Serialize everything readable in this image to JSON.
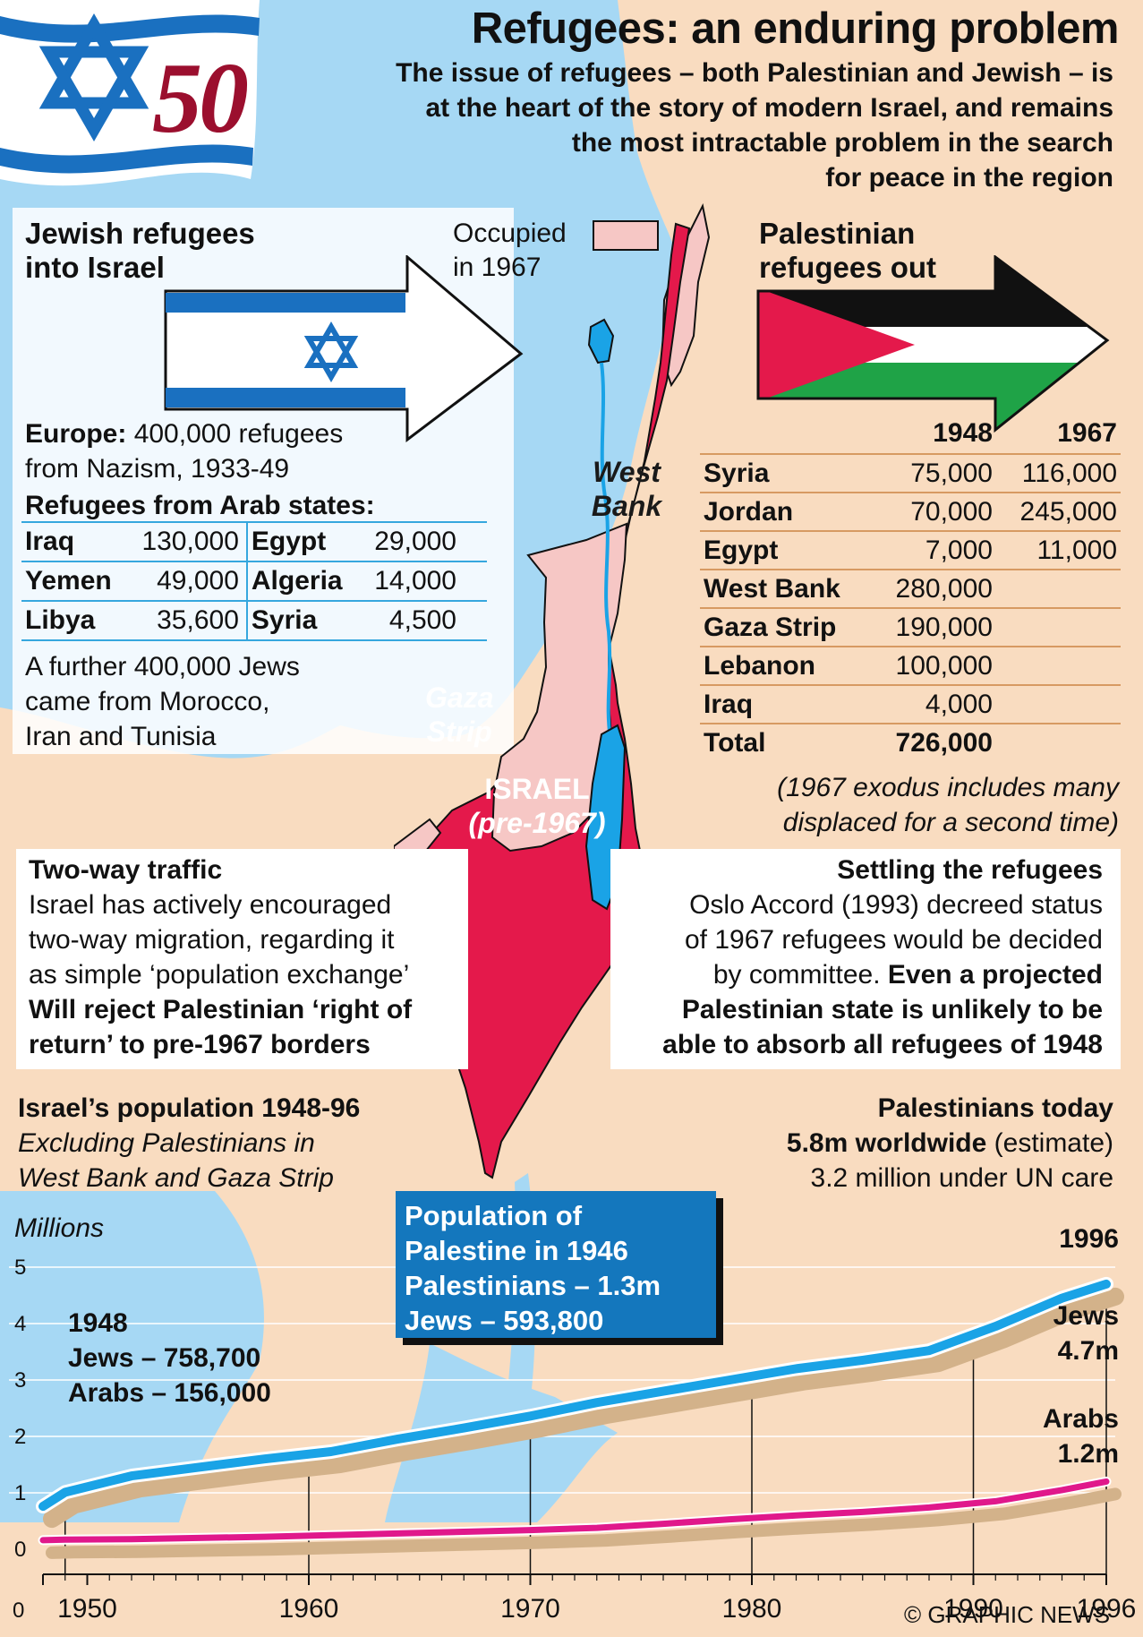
{
  "header": {
    "title": "Refugees: an enduring problem",
    "subtitle_lines": [
      "The issue of refugees – both Palestinian and Jewish – is",
      "at the heart of the story of modern Israel, and remains",
      "the most intractable problem in the search",
      "for peace in the region"
    ],
    "badge": "50"
  },
  "jewish": {
    "heading_lines": [
      "Jewish refugees",
      "into Israel"
    ],
    "europe_label": "Europe:",
    "europe_text_1": "400,000 refugees",
    "europe_text_2": "from Nazism, 1933-49",
    "arab_heading": "Refugees from Arab states:",
    "arab_rows": [
      {
        "c1": "Iraq",
        "v1": "130,000",
        "c2": "Egypt",
        "v2": "29,000"
      },
      {
        "c1": "Yemen",
        "v1": "49,000",
        "c2": "Algeria",
        "v2": "14,000"
      },
      {
        "c1": "Libya",
        "v1": "35,600",
        "c2": "Syria",
        "v2": "4,500"
      }
    ],
    "further_lines": [
      "A further 400,000 Jews",
      "came from Morocco,",
      "Iran and Tunisia"
    ]
  },
  "map": {
    "occupied_lines": [
      "Occupied",
      "in 1967"
    ],
    "west_bank_lines": [
      "West",
      "Bank"
    ],
    "gaza_lines": [
      "Gaza",
      "Strip"
    ],
    "israel_label": "ISRAEL",
    "israel_sub": "(pre-1967)"
  },
  "palestinian": {
    "heading_lines": [
      "Palestinian",
      "refugees out"
    ],
    "col_1948": "1948",
    "col_1967": "1967",
    "rows": [
      {
        "place": "Syria",
        "v1948": "75,000",
        "v1967": "116,000"
      },
      {
        "place": "Jordan",
        "v1948": "70,000",
        "v1967": "245,000"
      },
      {
        "place": "Egypt",
        "v1948": "7,000",
        "v1967": "11,000"
      },
      {
        "place": "West Bank",
        "v1948": "280,000",
        "v1967": ""
      },
      {
        "place": "Gaza Strip",
        "v1948": "190,000",
        "v1967": ""
      },
      {
        "place": "Lebanon",
        "v1948": "100,000",
        "v1967": ""
      },
      {
        "place": "Iraq",
        "v1948": "4,000",
        "v1967": ""
      }
    ],
    "total_label": "Total",
    "total_value": "726,000",
    "note_lines": [
      "(1967 exodus includes many",
      "displaced for a second time)"
    ]
  },
  "two_way": {
    "heading": "Two-way traffic",
    "lines": [
      "Israel has actively encouraged",
      "two-way migration, regarding it",
      "as simple ‘population exchange’"
    ],
    "bold_lines": [
      "Will reject Palestinian ‘right of",
      "return’ to pre-1967 borders"
    ]
  },
  "settling": {
    "heading": "Settling the refugees",
    "line1": "Oslo Accord (1993) decreed status",
    "line2": "of 1967 refugees would be decided",
    "line3_plain": "by committee.",
    "line3_bold": "Even a projected",
    "bold_lines": [
      "Palestinian state is unlikely to be",
      "able to absorb all refugees of 1948"
    ]
  },
  "israel_pop": {
    "heading": "Israel’s population 1948-96",
    "sub_lines": [
      "Excluding Palestinians in",
      "West Bank and Gaza Strip"
    ]
  },
  "pal_today": {
    "heading": "Palestinians today",
    "line1_bold": "5.8m worldwide",
    "line1_plain": "(estimate)",
    "line2": "3.2 million under UN care"
  },
  "pop1946": {
    "lines": [
      "Population of",
      "Palestine in 1946",
      "Palestinians – 1.3m",
      "Jews – 593,800"
    ]
  },
  "chart_annotations": {
    "left_lines": [
      "1948",
      "Jews – 758,700",
      "Arabs – 156,000"
    ],
    "year_1996": "1996",
    "jews_lines": [
      "Jews",
      "4.7m"
    ],
    "arabs_lines": [
      "Arabs",
      "1.2m"
    ]
  },
  "credit": "© GRAPHIC NEWS",
  "colors": {
    "land": "#f9dcc0",
    "sea": "#a6d8f4",
    "israel_red": "#e4194b",
    "occupied_pink": "#f6c7c5",
    "jews_line": "#1aa3e6",
    "arabs_line": "#e0188b",
    "shadow": "#d3b28a"
  },
  "chart_data": {
    "type": "line",
    "ylabel": "Millions",
    "ylim": [
      0,
      5
    ],
    "yticks": [
      "0",
      "1",
      "2",
      "3",
      "4",
      "5"
    ],
    "xlim": [
      1948,
      1996
    ],
    "xticks": [
      "1950",
      "1960",
      "1970",
      "1980",
      "1990",
      "1996"
    ],
    "x": [
      1948,
      1949,
      1952,
      1955,
      1958,
      1961,
      1964,
      1967,
      1970,
      1973,
      1976,
      1979,
      1982,
      1985,
      1988,
      1991,
      1994,
      1996
    ],
    "series": [
      {
        "name": "Jews",
        "values": [
          0.76,
          1.01,
          1.3,
          1.45,
          1.6,
          1.73,
          1.95,
          2.15,
          2.36,
          2.6,
          2.8,
          3.0,
          3.2,
          3.35,
          3.52,
          3.95,
          4.45,
          4.7
        ]
      },
      {
        "name": "Arabs",
        "values": [
          0.16,
          0.17,
          0.18,
          0.2,
          0.22,
          0.25,
          0.28,
          0.31,
          0.34,
          0.38,
          0.45,
          0.53,
          0.6,
          0.66,
          0.74,
          0.85,
          1.05,
          1.2
        ]
      }
    ]
  }
}
